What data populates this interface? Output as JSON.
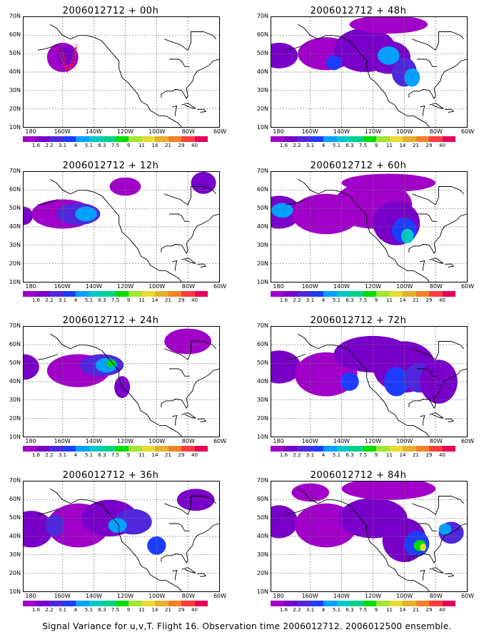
{
  "panels": [
    {
      "title": "2006012712 + 00h"
    },
    {
      "title": "2006012712 + 48h"
    },
    {
      "title": "2006012712 + 12h"
    },
    {
      "title": "2006012712 + 60h"
    },
    {
      "title": "2006012712 + 24h"
    },
    {
      "title": "2006012712 + 72h"
    },
    {
      "title": "2006012712 + 36h"
    },
    {
      "title": "2006012712 + 84h"
    }
  ],
  "lat_labels": [
    "70N",
    "60N",
    "50N",
    "40N",
    "30N",
    "20N",
    "10N"
  ],
  "lon_labels": [
    "180",
    "160W",
    "140W",
    "120W",
    "100W",
    "80W",
    "60W"
  ],
  "colorbar": {
    "labels": [
      "1.6",
      "2.2",
      "3.1",
      "4",
      "5.1",
      "6.3",
      "7.5",
      "9",
      "11",
      "14",
      "21",
      "29",
      "40"
    ],
    "colors": [
      "#a000c8",
      "#7800c8",
      "#5028dc",
      "#1e3cff",
      "#00a0ff",
      "#00c8c8",
      "#00d28c",
      "#00dc00",
      "#a0e632",
      "#e6dc32",
      "#e6af2d",
      "#f08228",
      "#fa3c3c",
      "#e6005a"
    ]
  },
  "footer": "Signal Variance for u,v,T. Flight 16. Observation time 2006012712. 2006012500 ensemble."
}
